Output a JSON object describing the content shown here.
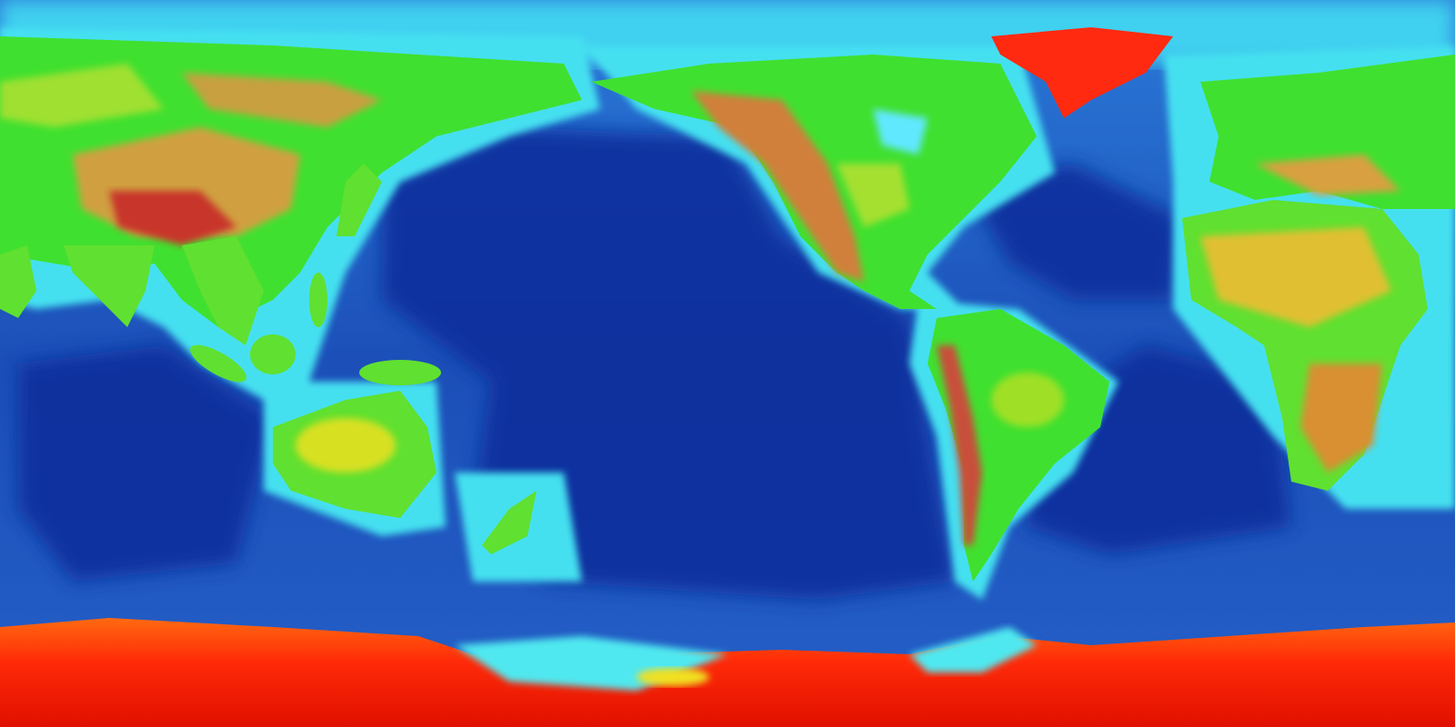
{
  "map": {
    "projection": "equirectangular",
    "centered_on": "Pacific",
    "colors": {
      "deep_ocean": "#0b2f9a",
      "ocean": "#1f5fc4",
      "shelf": "#3fd8e8",
      "shallow": "#6ff3ff",
      "lowland": "#52e02a",
      "upland": "#c8e020",
      "highland": "#d89a3a",
      "mountain": "#c0502a",
      "ice": "#ff3010"
    }
  }
}
